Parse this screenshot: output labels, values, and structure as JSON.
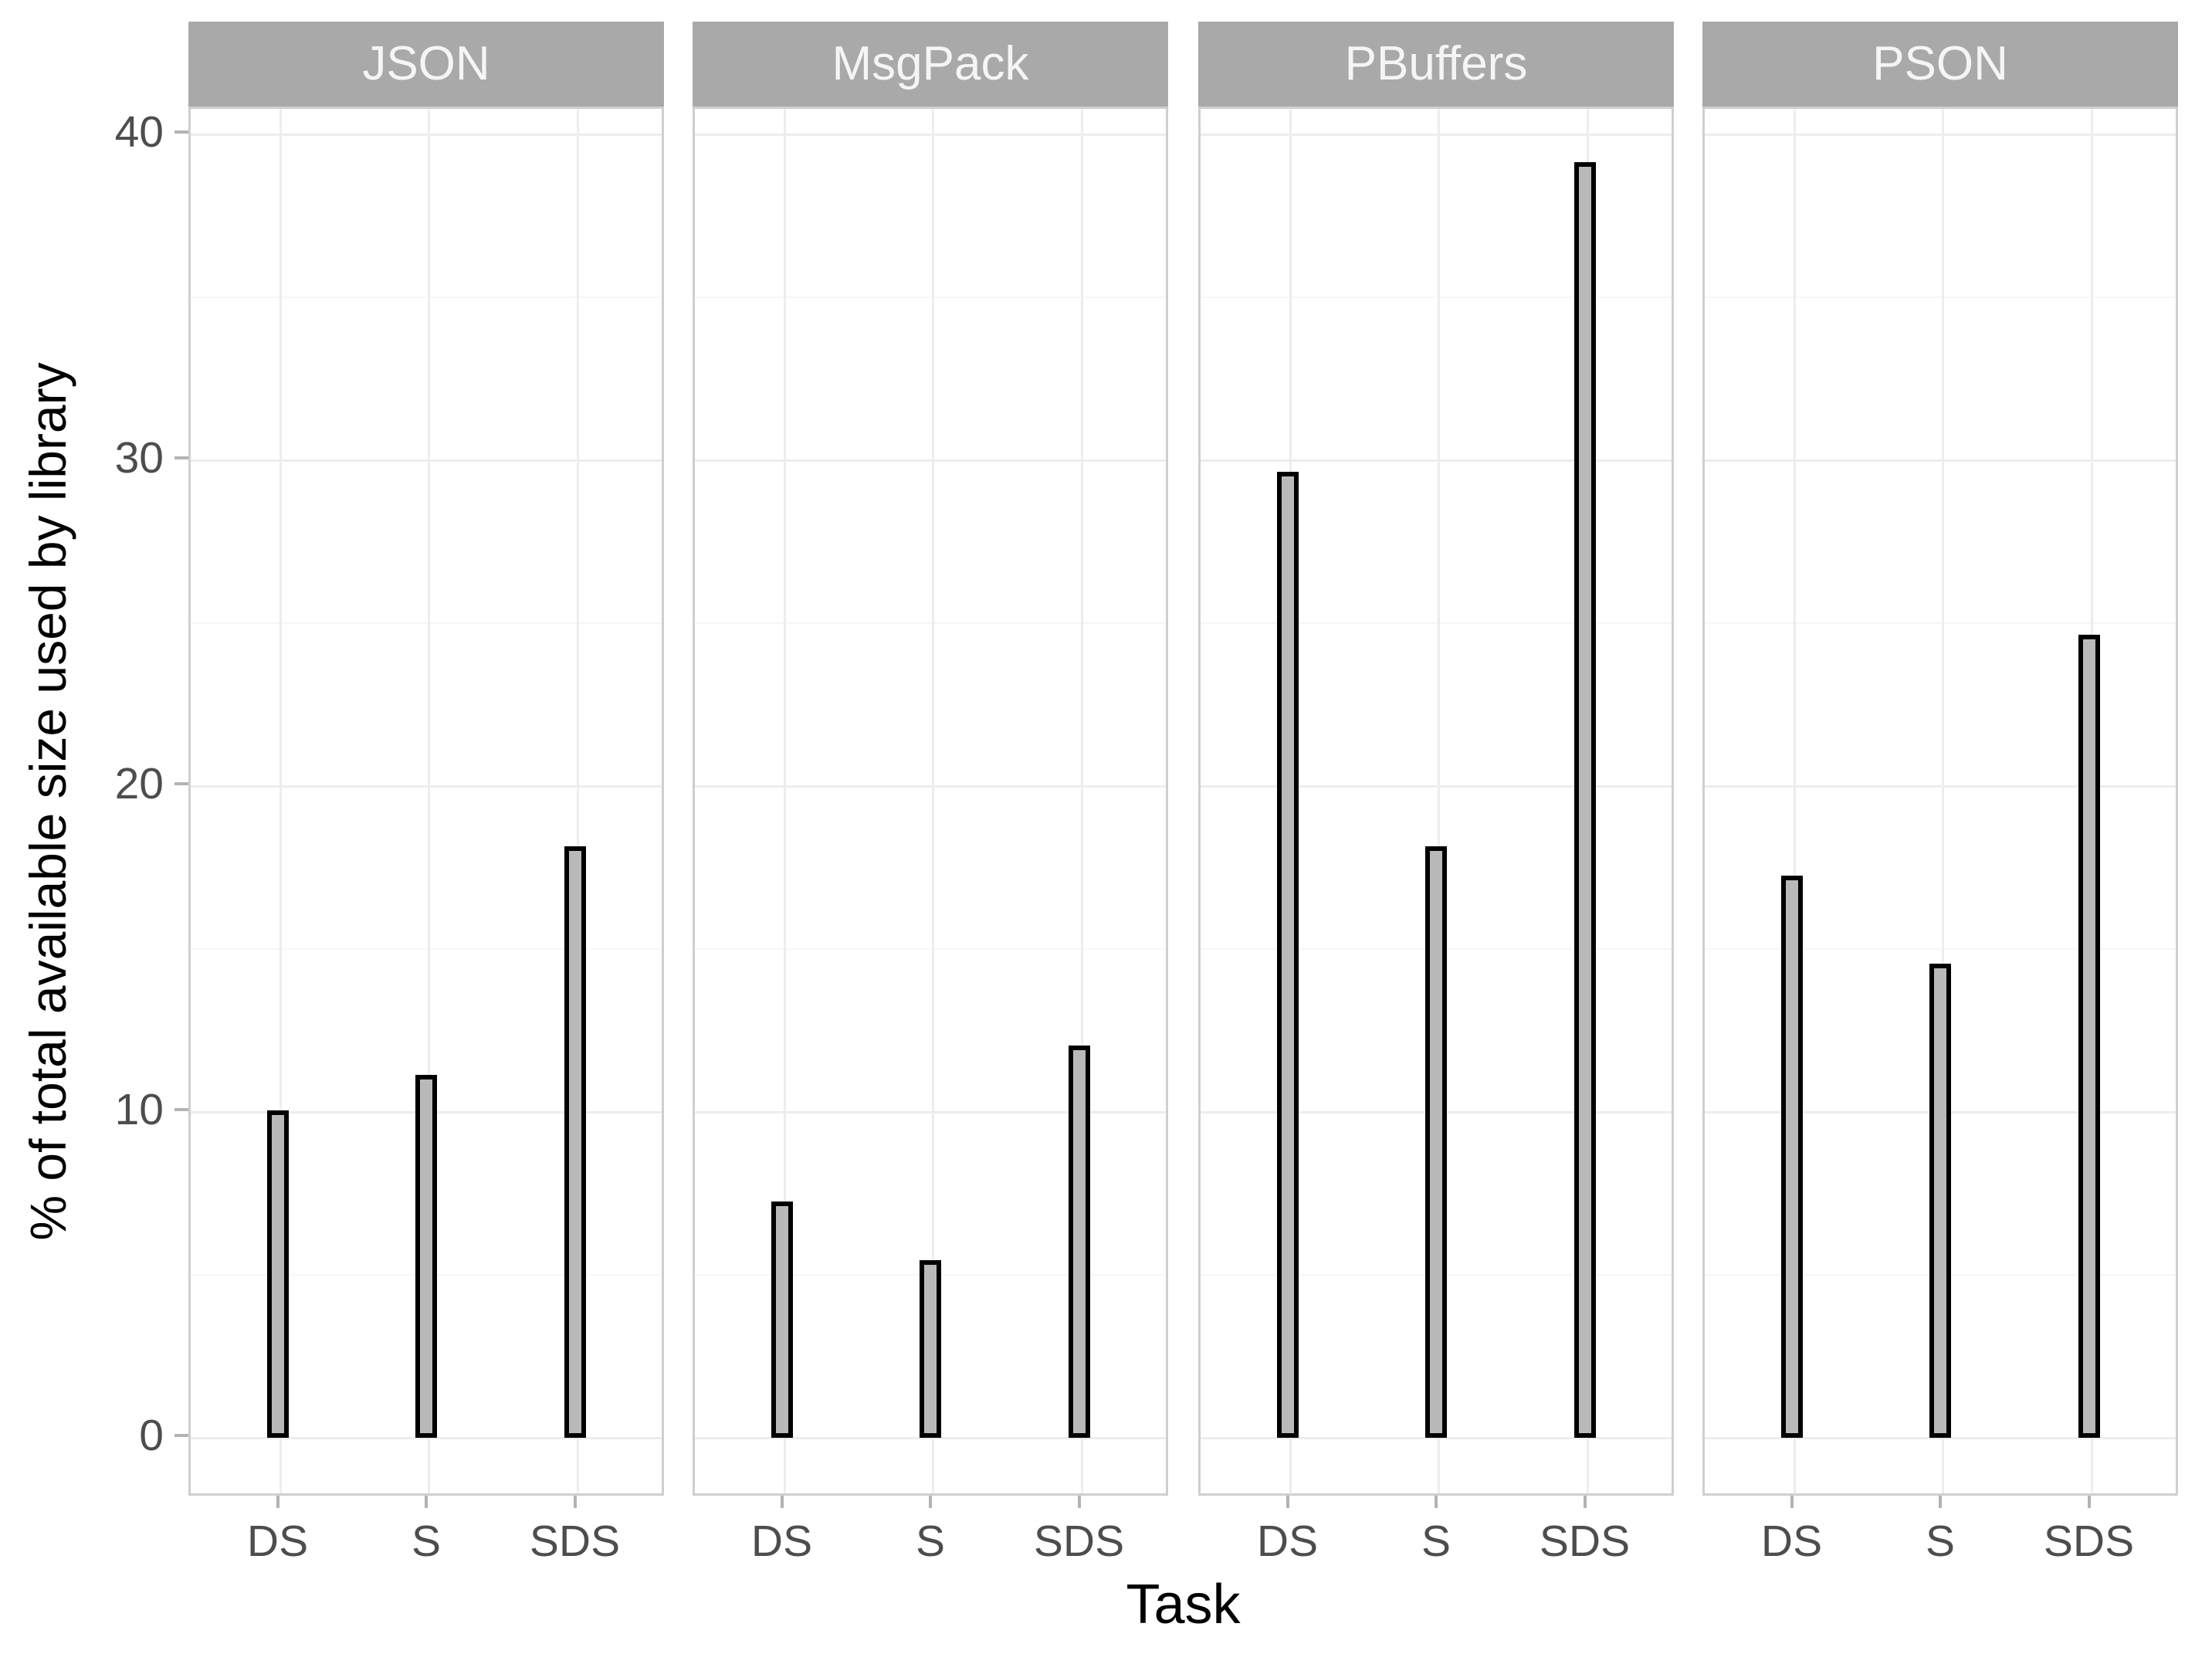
{
  "chart_data": {
    "type": "bar",
    "title": "",
    "xlabel": "Task",
    "ylabel": "% of total available size used by library",
    "categories": [
      "DS",
      "S",
      "SDS"
    ],
    "facets": [
      {
        "label": "JSON",
        "values": [
          9.9,
          11.0,
          18.0
        ]
      },
      {
        "label": "MsgPack",
        "values": [
          7.1,
          5.3,
          11.9
        ]
      },
      {
        "label": "PBuffers",
        "values": [
          29.5,
          18.0,
          39.0
        ]
      },
      {
        "label": "PSON",
        "values": [
          17.1,
          14.4,
          24.5
        ]
      }
    ],
    "y_ticks": [
      0,
      10,
      20,
      30,
      40
    ],
    "y_minor_ticks": [
      5,
      15,
      25,
      35
    ],
    "ylim": [
      -1.85,
      40.8
    ],
    "grid": "on",
    "legend_position": "none"
  },
  "colors": {
    "strip_background": "#a9a9a9",
    "strip_text": "#f5f5f5",
    "bar_fill": "#b9b9b9",
    "bar_border": "#000000",
    "gridline_major": "#ededed",
    "gridline_minor": "#f6f6f6",
    "panel_border": "#cfcfcf",
    "axis_text": "#4d4d4d",
    "axis_title": "#000000",
    "tick_mark": "#b3b3b3"
  }
}
